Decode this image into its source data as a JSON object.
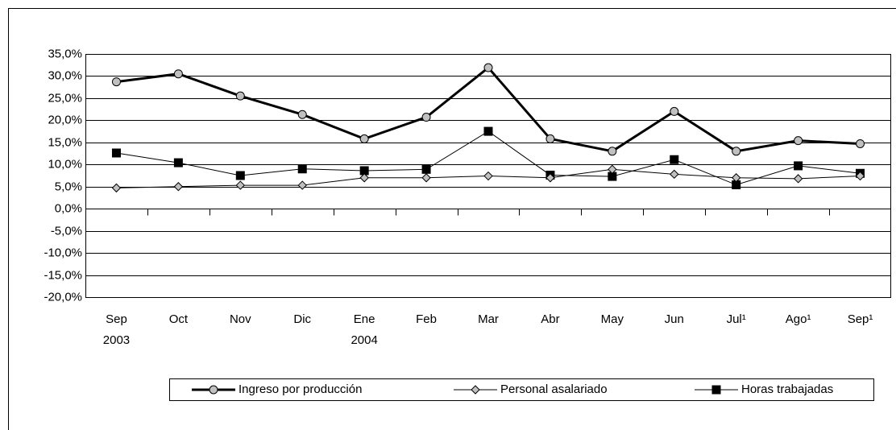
{
  "chart_data": {
    "type": "line",
    "categories": [
      "Sep\n2003",
      "Oct",
      "Nov",
      "Dic",
      "Ene\n2004",
      "Feb",
      "Mar",
      "Abr",
      "May",
      "Jun",
      "Jul¹",
      "Ago¹",
      "Sep¹"
    ],
    "series": [
      {
        "name": "Ingreso por producción",
        "color": "#000000",
        "marker": "circle",
        "marker_color": "#c0c0c0",
        "line_width": 3,
        "values": [
          28.7,
          30.5,
          25.5,
          21.3,
          15.8,
          20.7,
          31.9,
          15.8,
          13.0,
          22.0,
          13.0,
          15.4,
          14.7
        ]
      },
      {
        "name": "Personal asalariado",
        "color": "#000000",
        "marker": "diamond",
        "marker_color": "#c0c0c0",
        "line_width": 1,
        "values": [
          4.7,
          5.0,
          5.3,
          5.3,
          7.0,
          7.0,
          7.4,
          7.0,
          8.9,
          7.8,
          7.0,
          6.8,
          7.4
        ]
      },
      {
        "name": "Horas trabajadas",
        "color": "#000000",
        "marker": "square",
        "marker_color": "#000000",
        "line_width": 1,
        "values": [
          12.6,
          10.4,
          7.5,
          9.0,
          8.6,
          8.9,
          17.5,
          7.6,
          7.3,
          11.1,
          5.4,
          9.7,
          8.0
        ]
      }
    ],
    "ylim": [
      -20,
      35
    ],
    "yticks": [
      {
        "value": -20,
        "label": "-20,0%"
      },
      {
        "value": -15,
        "label": "-15,0%"
      },
      {
        "value": -10,
        "label": "-10,0%"
      },
      {
        "value": -5,
        "label": "-5,0%"
      },
      {
        "value": 0,
        "label": "0,0%"
      },
      {
        "value": 5,
        "label": "5,0%"
      },
      {
        "value": 10,
        "label": "10,0%"
      },
      {
        "value": 15,
        "label": "15,0%"
      },
      {
        "value": 20,
        "label": "20,0%"
      },
      {
        "value": 25,
        "label": "25,0%"
      },
      {
        "value": 30,
        "label": "30,0%"
      },
      {
        "value": 35,
        "label": "35,0%"
      }
    ],
    "grid": true,
    "legend": "bottom"
  }
}
